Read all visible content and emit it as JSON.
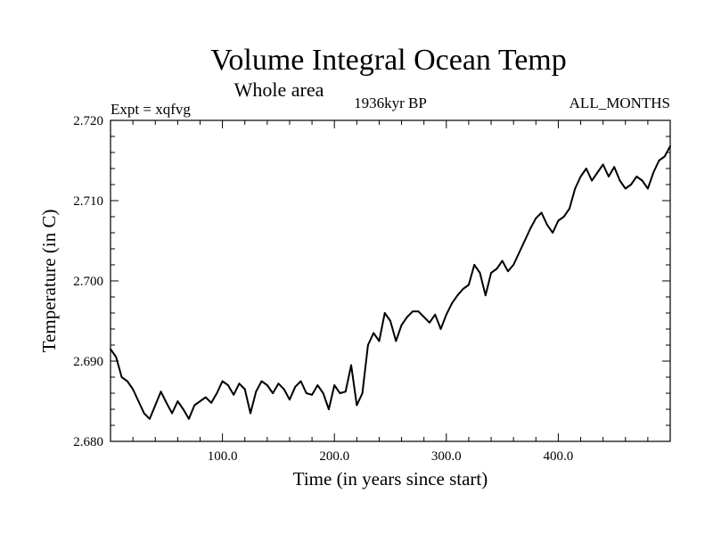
{
  "chart_data": {
    "type": "line",
    "title": "Volume Integral Ocean Temp",
    "subtitle": "Whole area",
    "left_label": "Expt = xqfvg",
    "center_label": "1936kyr BP",
    "right_label": "ALL_MONTHS",
    "xlabel": "Time (in years since start)",
    "ylabel": "Temperature (in C)",
    "xlim": [
      0,
      500
    ],
    "ylim": [
      2.68,
      2.72
    ],
    "x_ticks": [
      {
        "value": 100,
        "label": "100.0"
      },
      {
        "value": 200,
        "label": "200.0"
      },
      {
        "value": 300,
        "label": "300.0"
      },
      {
        "value": 400,
        "label": "400.0"
      }
    ],
    "y_ticks": [
      {
        "value": 2.68,
        "label": "2.680"
      },
      {
        "value": 2.69,
        "label": "2.690"
      },
      {
        "value": 2.7,
        "label": "2.700"
      },
      {
        "value": 2.71,
        "label": "2.710"
      },
      {
        "value": 2.72,
        "label": "2.720"
      }
    ],
    "series": [
      {
        "name": "Volume Integral Ocean Temp",
        "color": "#000000",
        "x": [
          0,
          5,
          10,
          15,
          20,
          25,
          30,
          35,
          40,
          45,
          50,
          55,
          60,
          65,
          70,
          75,
          80,
          85,
          90,
          95,
          100,
          105,
          110,
          115,
          120,
          125,
          130,
          135,
          140,
          145,
          150,
          155,
          160,
          165,
          170,
          175,
          180,
          185,
          190,
          195,
          200,
          205,
          210,
          215,
          220,
          225,
          230,
          235,
          240,
          245,
          250,
          255,
          260,
          265,
          270,
          275,
          280,
          285,
          290,
          295,
          300,
          305,
          310,
          315,
          320,
          325,
          330,
          335,
          340,
          345,
          350,
          355,
          360,
          365,
          370,
          375,
          380,
          385,
          390,
          395,
          400,
          405,
          410,
          415,
          420,
          425,
          430,
          435,
          440,
          445,
          450,
          455,
          460,
          465,
          470,
          475,
          480,
          485,
          490,
          495,
          500
        ],
        "y": [
          2.6915,
          2.6905,
          2.688,
          2.6875,
          2.6865,
          2.685,
          2.6835,
          2.6828,
          2.6845,
          2.6862,
          2.6848,
          2.6835,
          2.685,
          2.684,
          2.6828,
          2.6845,
          2.685,
          2.6855,
          2.6848,
          2.686,
          2.6875,
          2.687,
          2.6858,
          2.6872,
          2.6865,
          2.6835,
          2.6862,
          2.6875,
          2.687,
          2.686,
          2.6872,
          2.6865,
          2.6852,
          2.6868,
          2.6875,
          2.686,
          2.6858,
          2.687,
          2.686,
          2.684,
          2.687,
          2.686,
          2.6862,
          2.6895,
          2.6845,
          2.686,
          2.692,
          2.6935,
          2.6925,
          2.696,
          2.695,
          2.6925,
          2.6945,
          2.6955,
          2.6962,
          2.6962,
          2.6955,
          2.6948,
          2.6958,
          2.694,
          2.6958,
          2.6972,
          2.6982,
          2.699,
          2.6995,
          2.702,
          2.701,
          2.6982,
          2.701,
          2.7015,
          2.7025,
          2.7012,
          2.702,
          2.7035,
          2.705,
          2.7065,
          2.7078,
          2.7085,
          2.707,
          2.706,
          2.7075,
          2.708,
          2.709,
          2.7115,
          2.713,
          2.714,
          2.7125,
          2.7135,
          2.7145,
          2.713,
          2.7142,
          2.7125,
          2.7115,
          2.712,
          2.713,
          2.7125,
          2.7115,
          2.7135,
          2.715,
          2.7155,
          2.7168
        ]
      }
    ]
  }
}
